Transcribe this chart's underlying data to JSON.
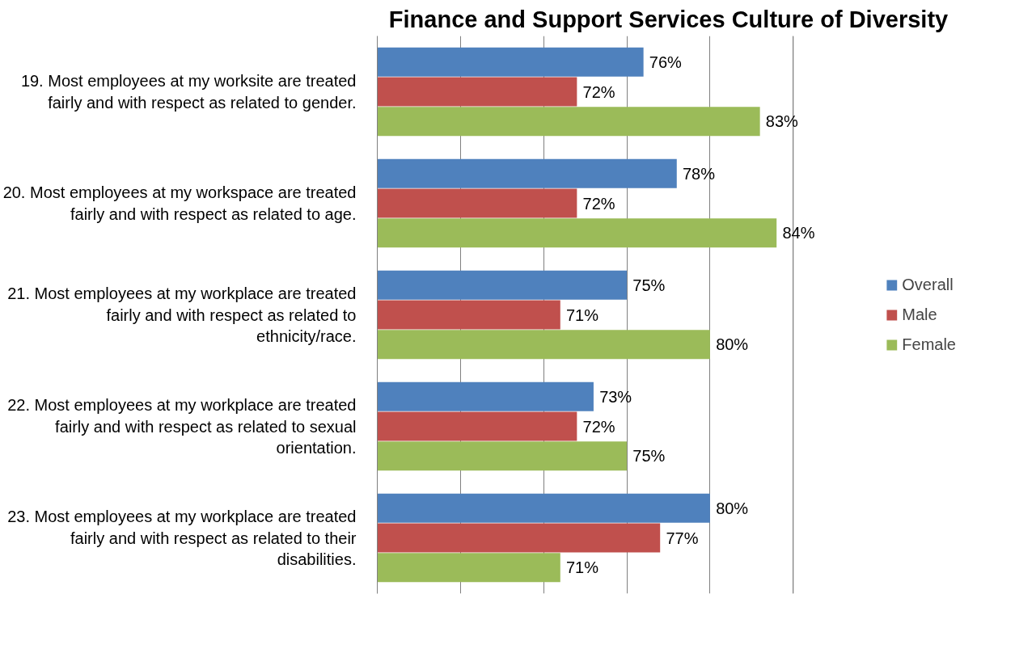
{
  "chart_data": {
    "type": "bar",
    "orientation": "horizontal",
    "title": "Finance and Support Services Culture of Diversity",
    "categories": [
      "19. Most employees at my worksite are treated fairly and with respect as related to gender.",
      "20. Most employees at my workspace are treated fairly and with respect as related to age.",
      "21. Most employees at my workplace are treated fairly and with respect as related to ethnicity/race.",
      "22. Most employees at my workplace are treated fairly and with respect as related to sexual orientation.",
      "23. Most employees at my workplace are treated fairly and with respect as related to their disabilities."
    ],
    "series": [
      {
        "name": "Overall",
        "color": "#4f81bd",
        "values": [
          76,
          78,
          75,
          73,
          80
        ],
        "value_labels": [
          "76%",
          "78%",
          "75%",
          "73%",
          "80%"
        ]
      },
      {
        "name": "Male",
        "color": "#c0504d",
        "values": [
          72,
          72,
          71,
          72,
          77
        ],
        "value_labels": [
          "72%",
          "72%",
          "71%",
          "72%",
          "77%"
        ]
      },
      {
        "name": "Female",
        "color": "#9bbb59",
        "values": [
          83,
          84,
          80,
          75,
          71
        ],
        "value_labels": [
          "83%",
          "84%",
          "80%",
          "75%",
          "71%"
        ]
      }
    ],
    "xlim": [
      60,
      85
    ],
    "xticks": [
      {
        "value": 60,
        "label": null
      },
      {
        "value": 65,
        "label": null
      },
      {
        "value": 70,
        "label": null
      },
      {
        "value": 75,
        "label": null
      },
      {
        "value": 80,
        "label": null
      },
      {
        "value": 85,
        "label": null
      }
    ],
    "tick_labels": "y",
    "grid": "x",
    "legend": "right"
  }
}
